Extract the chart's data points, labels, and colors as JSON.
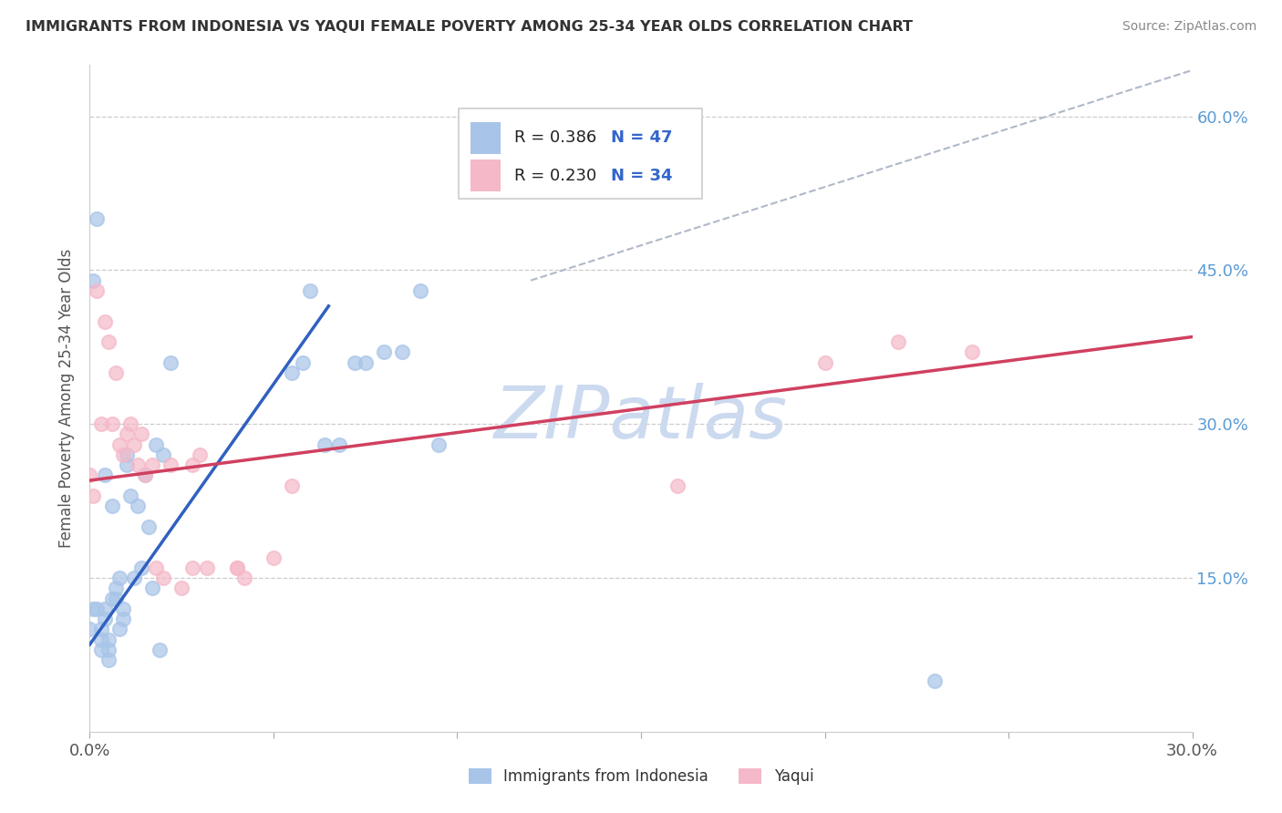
{
  "title": "IMMIGRANTS FROM INDONESIA VS YAQUI FEMALE POVERTY AMONG 25-34 YEAR OLDS CORRELATION CHART",
  "source": "Source: ZipAtlas.com",
  "ylabel": "Female Poverty Among 25-34 Year Olds",
  "legend_R_blue": "R = 0.386",
  "legend_N_blue": "N = 47",
  "legend_R_pink": "R = 0.230",
  "legend_N_pink": "N = 34",
  "blue_scatter_color": "#a8c4e8",
  "pink_scatter_color": "#f5b8c8",
  "line_blue_color": "#3060c0",
  "line_pink_color": "#d04060",
  "line_gray_color": "#b0b8c8",
  "watermark_color": "#ccdaf0",
  "xlim": [
    0.0,
    0.3
  ],
  "ylim": [
    0.0,
    0.65
  ],
  "yticks": [
    0.15,
    0.3,
    0.45,
    0.6
  ],
  "ytick_labels": [
    "15.0%",
    "30.0%",
    "45.0%",
    "60.0%"
  ],
  "xtick_labels_show": [
    "0.0%",
    "30.0%"
  ],
  "blue_line_x0": 0.0,
  "blue_line_y0": 0.085,
  "blue_line_x1": 0.065,
  "blue_line_y1": 0.415,
  "pink_line_x0": 0.0,
  "pink_line_y0": 0.245,
  "pink_line_x1": 0.3,
  "pink_line_y1": 0.385,
  "gray_line_x0": 0.12,
  "gray_line_y0": 0.44,
  "gray_line_x1": 0.3,
  "gray_line_y1": 0.645,
  "indonesia_x": [
    0.0,
    0.001,
    0.001,
    0.002,
    0.002,
    0.003,
    0.003,
    0.003,
    0.004,
    0.004,
    0.004,
    0.005,
    0.005,
    0.005,
    0.006,
    0.006,
    0.007,
    0.007,
    0.008,
    0.008,
    0.009,
    0.009,
    0.01,
    0.01,
    0.011,
    0.012,
    0.013,
    0.014,
    0.015,
    0.016,
    0.017,
    0.018,
    0.019,
    0.02,
    0.022,
    0.055,
    0.058,
    0.06,
    0.064,
    0.068,
    0.072,
    0.075,
    0.08,
    0.085,
    0.09,
    0.095,
    0.23
  ],
  "indonesia_y": [
    0.1,
    0.12,
    0.44,
    0.12,
    0.5,
    0.08,
    0.09,
    0.1,
    0.11,
    0.12,
    0.25,
    0.07,
    0.08,
    0.09,
    0.22,
    0.13,
    0.13,
    0.14,
    0.1,
    0.15,
    0.11,
    0.12,
    0.26,
    0.27,
    0.23,
    0.15,
    0.22,
    0.16,
    0.25,
    0.2,
    0.14,
    0.28,
    0.08,
    0.27,
    0.36,
    0.35,
    0.36,
    0.43,
    0.28,
    0.28,
    0.36,
    0.36,
    0.37,
    0.37,
    0.43,
    0.28,
    0.05
  ],
  "yaqui_x": [
    0.0,
    0.001,
    0.002,
    0.003,
    0.004,
    0.005,
    0.006,
    0.007,
    0.008,
    0.009,
    0.01,
    0.011,
    0.012,
    0.013,
    0.014,
    0.015,
    0.017,
    0.018,
    0.02,
    0.022,
    0.025,
    0.028,
    0.03,
    0.04,
    0.042,
    0.05,
    0.055,
    0.2,
    0.22,
    0.24,
    0.028,
    0.032,
    0.04,
    0.16
  ],
  "yaqui_y": [
    0.25,
    0.23,
    0.43,
    0.3,
    0.4,
    0.38,
    0.3,
    0.35,
    0.28,
    0.27,
    0.29,
    0.3,
    0.28,
    0.26,
    0.29,
    0.25,
    0.26,
    0.16,
    0.15,
    0.26,
    0.14,
    0.16,
    0.27,
    0.16,
    0.15,
    0.17,
    0.24,
    0.36,
    0.38,
    0.37,
    0.26,
    0.16,
    0.16,
    0.24
  ]
}
